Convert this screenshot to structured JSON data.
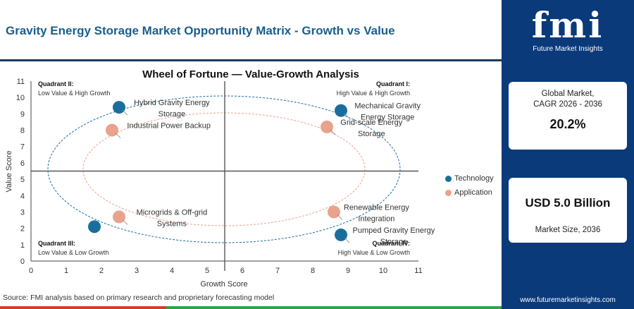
{
  "page": {
    "title": "Gravity Energy Storage Market Opportunity Matrix - Growth vs Value",
    "source": "Source: FMI analysis based on primary research and proprietary forecasting model"
  },
  "brand": {
    "logo_text": "fmi",
    "tagline": "Future Market Insights",
    "website": "www.futuremarketinsights.com",
    "colors": {
      "panel": "#0a3a7a",
      "title": "#1b5e8c",
      "technology": "#1a6e9e",
      "application": "#e9a38c",
      "bar_green": "#28a745",
      "bar_red": "#d93a2b"
    }
  },
  "stats": {
    "cagr_label_line1": "Global Market,",
    "cagr_label_line2": "CAGR 2026 - 2036",
    "cagr_value": "20.2%",
    "size_value": "USD 5.0 Billion",
    "size_label": "Market Size, 2036"
  },
  "legend": {
    "technology": "Technology",
    "application": "Application"
  },
  "chart_data": {
    "type": "scatter",
    "title": "Wheel of Fortune — Value-Growth Analysis",
    "xlabel": "Growth Score",
    "ylabel": "Value Score",
    "xlim": [
      0,
      11
    ],
    "ylim": [
      0,
      11
    ],
    "xticks": [
      0,
      1,
      2,
      3,
      4,
      5,
      6,
      7,
      8,
      9,
      10,
      11
    ],
    "yticks": [
      0,
      1,
      2,
      3,
      4,
      5,
      6,
      7,
      8,
      9,
      10,
      11
    ],
    "divider_x": 5.5,
    "divider_y": 5.5,
    "grid": false,
    "legend_position": "right",
    "quadrants": [
      {
        "id": "I",
        "title": "Quadrant I:",
        "subtitle": "High Value & High Growth",
        "position": "top-right"
      },
      {
        "id": "II",
        "title": "Quadrant II:",
        "subtitle": "Low Value & High Growth",
        "position": "top-left"
      },
      {
        "id": "III",
        "title": "Quadrant III:",
        "subtitle": "Low Value & Low Growth",
        "position": "bottom-left"
      },
      {
        "id": "IV",
        "title": "Quadrant IV:",
        "subtitle": "High Value & Low Growth",
        "position": "bottom-right"
      }
    ],
    "series": [
      {
        "name": "Technology",
        "color": "#1a6e9e",
        "points": [
          {
            "label": [
              "Hybrid Gravity Energy",
              "Storage"
            ],
            "x": 2.5,
            "y": 9.4
          },
          {
            "label": [
              "Mechanical Gravity",
              "Energy Storage"
            ],
            "x": 8.8,
            "y": 9.2
          },
          {
            "label": [
              "Pumped Gravity Energy",
              "Storage"
            ],
            "x": 8.8,
            "y": 1.6
          },
          {
            "label": [],
            "x": 1.8,
            "y": 2.1
          }
        ]
      },
      {
        "name": "Application",
        "color": "#e9a38c",
        "points": [
          {
            "label": [
              "Industrial Power Backup"
            ],
            "x": 2.3,
            "y": 8.0
          },
          {
            "label": [
              "Grid-scale Energy",
              "Storage"
            ],
            "x": 8.4,
            "y": 8.2
          },
          {
            "label": [
              "Renewable Energy",
              "Integration"
            ],
            "x": 8.6,
            "y": 3.0
          },
          {
            "label": [
              "Microgrids & Off-grid",
              "Systems"
            ],
            "x": 2.5,
            "y": 2.7
          }
        ]
      }
    ]
  }
}
